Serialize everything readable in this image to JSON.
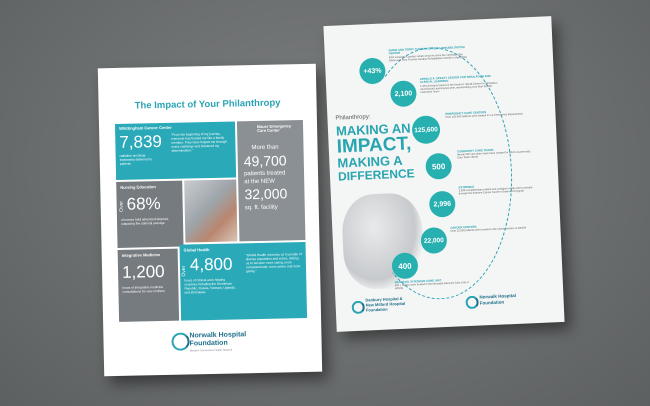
{
  "left": {
    "title": "The Impact of Your Philanthropy",
    "whittingham": {
      "label": "Whittingham Cancer Center",
      "stat": "7,839",
      "text": "radiation oncology treatments delivered to patients",
      "quote": "\"From the beginning of my journey, everyone has treated me like a family member. They have helped me through every challenge and bolstered my determination.\""
    },
    "bauer": {
      "label": "Bauer Emergency Care Center",
      "more": "More than",
      "stat": "49,700",
      "text1": "patients treated",
      "text2": "at the NEW",
      "stat2": "32,000",
      "text3": "sq. ft. facility"
    },
    "nursing": {
      "label": "Nursing Education",
      "over": "Over",
      "stat": "68%",
      "text": "of nurses hold advanced degrees, outpacing the national average"
    },
    "integrative": {
      "label": "Integrative Medicine",
      "stat": "1,200",
      "text": "hours of integrative medicine consultations for new mothers"
    },
    "global": {
      "label": "Global Health",
      "over": "Over",
      "stat": "4,800",
      "text": "hours of clinical work helping countries including the Dominican Republic, Russia, Vietnam, Uganda, and Zimbabwe.",
      "quote": "\"Global Health connects us to people of diverse population and colors, driving us to become more caring, more compassionate, more aware and more giving.\""
    },
    "logo": {
      "line1": "Norwalk Hospital",
      "line2": "Foundation",
      "tag": "Western Connecticut Health Network"
    }
  },
  "right": {
    "pre": "Philanthropy:",
    "h1": "MAKING AN",
    "h2": "IMPACT,",
    "h3": "MAKING A",
    "h4": "DIFFERENCE",
    "stats": [
      {
        "value": "+43%",
        "label": "DIANE AND TERRY THOMAS CARDIAC REHABILITATION CENTER",
        "text": "43% increase in cardiac rehab sessions since the opening of the Diane and Terry Thomas Cardiac Rehabilitation Center in April 2015"
      },
      {
        "value": "2,100",
        "label": "ARNOLD A. SPRATT CENTER FOR SIMULATION AND CLINICAL LEARNING",
        "text": "2,100 clinicians trained in the Arnold A. Spratt Center for Simulation and Clinical Learning last year, representing more than 35,000 instruction hours"
      },
      {
        "value": "125,600",
        "label": "EMERGENCY CARE CENTERS",
        "text": "Over 125,600 patients were treated in our Emergency Departments"
      },
      {
        "value": "500",
        "label": "COMMUNITY CARE TEAMS",
        "text": "Nearly 500 care plans have been created for HCH's Community Care Team clients"
      },
      {
        "value": "2,996",
        "label": "EXTREMUS",
        "text": "2,996 complimentary patient and caregiver meals were provided through the Extreme Cancer Center's Extended Program"
      },
      {
        "value": "22,000",
        "label": "CANCER CENTERS",
        "text": "Over 22,000 patients were treated in the cancer centers of WCHN"
      },
      {
        "value": "400",
        "label": "NEONATAL INTENSIVE CARE UNIT",
        "text": "400 + babies were treated in the Neonatal Intensive Care Unit of WCHN"
      }
    ],
    "logo1": {
      "line1": "Danbury Hospital &",
      "line2": "New Milford Hospital",
      "line3": "Foundation"
    },
    "logo2": {
      "line1": "Norwalk Hospital",
      "line2": "Foundation"
    }
  }
}
